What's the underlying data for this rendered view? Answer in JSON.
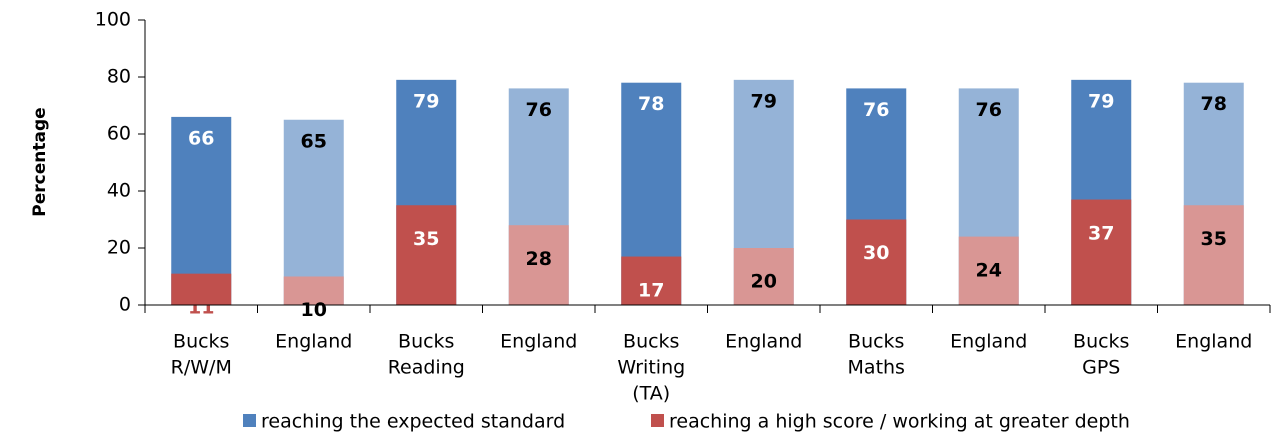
{
  "chart_data": {
    "type": "bar",
    "ylabel": "Percentage",
    "categories": [
      [
        "Bucks",
        "R/W/M"
      ],
      [
        "England"
      ],
      [
        "Bucks",
        "Reading"
      ],
      [
        "England"
      ],
      [
        "Bucks",
        "Writing",
        "(TA)"
      ],
      [
        "England"
      ],
      [
        "Bucks",
        "Maths"
      ],
      [
        "England"
      ],
      [
        "Bucks",
        "GPS"
      ],
      [
        "England"
      ]
    ],
    "series": [
      {
        "name": "reaching the expected standard",
        "color": "#4f81bd",
        "colors": [
          "#4f81bd",
          "#95b3d7",
          "#4f81bd",
          "#95b3d7",
          "#4f81bd",
          "#95b3d7",
          "#4f81bd",
          "#95b3d7",
          "#4f81bd",
          "#95b3d7"
        ],
        "label_colors": [
          "#ffffff",
          "#000000",
          "#ffffff",
          "#000000",
          "#ffffff",
          "#000000",
          "#ffffff",
          "#000000",
          "#ffffff",
          "#000000"
        ],
        "values": [
          66,
          65,
          79,
          76,
          78,
          79,
          76,
          76,
          79,
          78
        ]
      },
      {
        "name": "reaching a high score / working at greater depth",
        "color": "#c0504d",
        "colors": [
          "#c0504d",
          "#d99694",
          "#c0504d",
          "#d99694",
          "#c0504d",
          "#d99694",
          "#c0504d",
          "#d99694",
          "#c0504d",
          "#d99694"
        ],
        "label_colors": [
          "#c0504d",
          "#000000",
          "#ffffff",
          "#000000",
          "#ffffff",
          "#000000",
          "#ffffff",
          "#000000",
          "#ffffff",
          "#000000"
        ],
        "values": [
          11,
          10,
          35,
          28,
          17,
          20,
          30,
          24,
          37,
          35
        ]
      }
    ],
    "ylim": [
      0,
      100
    ],
    "yticks": [
      0,
      20,
      40,
      60,
      80,
      100
    ],
    "grid": false,
    "legend": "bottom"
  }
}
